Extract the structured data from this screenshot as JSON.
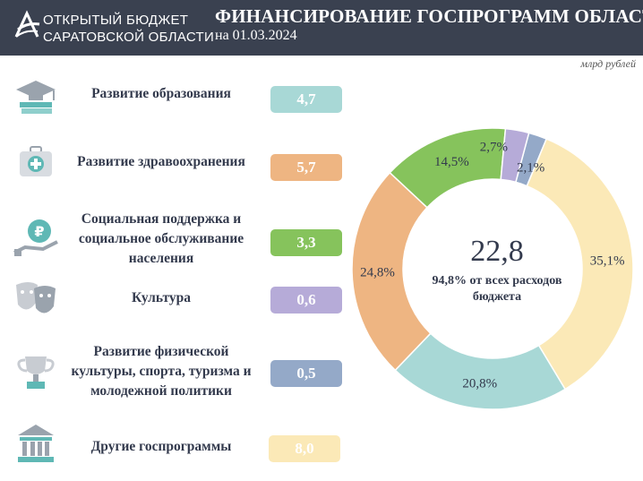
{
  "header": {
    "org_line1": "ОТКРЫТЫЙ БЮДЖЕТ",
    "org_line2": "САРАТОВСКОЙ ОБЛАСТИ",
    "title": "ФИНАНСИРОВАНИЕ ГОСПРОГРАММ ОБЛАСТИ",
    "date": "на 01.03.2024"
  },
  "unit": "млрд рублей",
  "programs": [
    {
      "label": "Развитие образования",
      "value": "4,7",
      "color": "#a8d8d6",
      "icon": "graduation-cap-icon"
    },
    {
      "label": "Развитие здравоохранения",
      "value": "5,7",
      "color": "#eeb582",
      "icon": "medical-kit-icon"
    },
    {
      "label": "Социальная поддержка и социальное обслуживание населения",
      "value": "3,3",
      "color": "#86c35c",
      "icon": "ruble-hand-icon"
    },
    {
      "label": "Культура",
      "value": "0,6",
      "color": "#b6abd8",
      "icon": "theater-masks-icon"
    },
    {
      "label": "Развитие физической культуры, спорта, туризма и молодежной политики",
      "value": "0,5",
      "color": "#94a9c8",
      "icon": "trophy-icon"
    },
    {
      "label": "Другие госпрограммы",
      "value": "8,0",
      "color": "#fbe9b7",
      "icon": "government-building-icon"
    }
  ],
  "center": {
    "value": "22,8",
    "caption": "94,8% от всех расходов бюджета"
  },
  "chart_data": {
    "type": "pie",
    "categories": [
      "Развитие образования",
      "Развитие здравоохранения",
      "Социальная поддержка и социальное обслуживание населения",
      "Культура",
      "Развитие физической культуры, спорта, туризма и молодежной политики",
      "Другие госпрограммы"
    ],
    "values": [
      20.8,
      24.8,
      14.5,
      2.7,
      2.1,
      35.1
    ],
    "labels": [
      "20,8%",
      "24,8%",
      "14,5%",
      "2,7%",
      "2,1%",
      "35,1%"
    ],
    "colors": [
      "#a8d8d6",
      "#eeb582",
      "#86c35c",
      "#b6abd8",
      "#94a9c8",
      "#fbe9b7"
    ],
    "donut": true
  }
}
